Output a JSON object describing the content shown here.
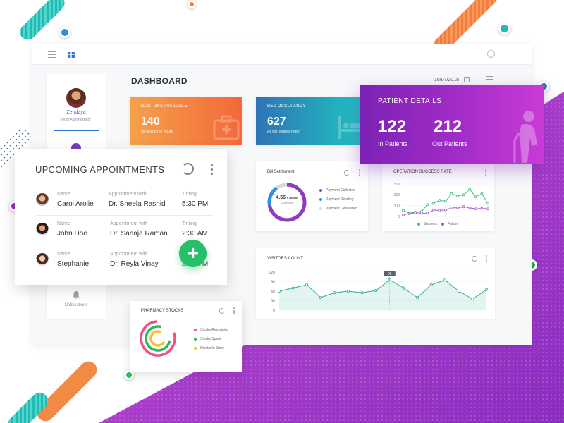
{
  "page_title": "DASHBOARD",
  "date": "16/07/2018",
  "user": {
    "name": "Zendaya",
    "role": "Floor Administrator"
  },
  "sidebar": {
    "notifications_label": "Notifications"
  },
  "stats": {
    "doctors": {
      "label": "DOCTORS AVAILABLE",
      "value": "140",
      "sub": "for Next three Hours",
      "color_from": "#f6a14a",
      "color_to": "#f2693a"
    },
    "beds": {
      "label": "BED OCCUPANCY",
      "value": "627",
      "sub": "As per Today's report",
      "color_from": "#2f74b6",
      "color_to": "#1fc6c1"
    }
  },
  "patient_details": {
    "title": "PATIENT DETAILS",
    "in_value": "122",
    "in_label": "In Patients",
    "out_value": "212",
    "out_label": "Out Patients"
  },
  "bill": {
    "title": "Bill Settlement",
    "center_value": "4.56",
    "center_unit": "$ Billion",
    "center_label": "Collected",
    "legend": [
      "Payment Collected",
      "Payment Pending",
      "Payment Generated"
    ],
    "colors": [
      "#8e3bbf",
      "#2f8fe0",
      "#d7d9de"
    ],
    "collected_fraction": 0.72,
    "pending_fraction": 0.18
  },
  "operation": {
    "title": "Operation Success Rate",
    "legend": [
      "Success",
      "Failure"
    ],
    "colors": [
      "#3fbf7f",
      "#a55cc9"
    ]
  },
  "visitors": {
    "title": "Visitors Count",
    "tooltip": "96"
  },
  "pharmacy": {
    "title": "Pharmacy Stocks",
    "legend": [
      "Stocks Remaining",
      "Stocks Spent",
      "Stocks In Store"
    ],
    "colors": [
      "#f0527a",
      "#2fb461",
      "#f4c21f"
    ]
  },
  "appointments": {
    "title": "UPCOMING APPOINTMENTS",
    "col_name": "Name",
    "col_with": "Appointment with",
    "col_time": "Timing",
    "rows": [
      {
        "name": "Carol Arolie",
        "doctor": "Dr. Sheela Rashid",
        "time": "5:30 PM"
      },
      {
        "name": "John Doe",
        "doctor": "Dr. Sanaja Raman",
        "time": "2:30 AM"
      },
      {
        "name": "Stephanie",
        "doctor": "Dr. Reyla Vinay",
        "time": "3:30 PM"
      }
    ]
  },
  "chart_data": [
    {
      "type": "line",
      "title": "Operation Success Rate",
      "ylim": [
        0,
        300
      ],
      "yticks": [
        "300",
        "200",
        "100",
        "0"
      ],
      "x": [
        1,
        2,
        3,
        4,
        5,
        6,
        7,
        8,
        9,
        10,
        11,
        12,
        13,
        14,
        15
      ],
      "series": [
        {
          "name": "Success",
          "values": [
            55,
            30,
            40,
            45,
            110,
            120,
            150,
            140,
            210,
            190,
            200,
            250,
            180,
            210,
            120
          ]
        },
        {
          "name": "Failure",
          "values": [
            15,
            25,
            35,
            30,
            30,
            60,
            55,
            60,
            80,
            80,
            90,
            80,
            70,
            75,
            70
          ]
        }
      ],
      "legend": "bottom"
    },
    {
      "type": "area",
      "title": "Visitors Count",
      "ylim": [
        0,
        120
      ],
      "yticks": [
        "120",
        "90",
        "60",
        "30",
        "0"
      ],
      "x": [
        1,
        2,
        3,
        4,
        5,
        6,
        7,
        8,
        9,
        10,
        11,
        12,
        13,
        14,
        15,
        16
      ],
      "series": [
        {
          "name": "",
          "values": [
            60,
            70,
            80,
            40,
            55,
            60,
            55,
            62,
            96,
            70,
            40,
            80,
            95,
            60,
            35,
            65
          ]
        }
      ],
      "annotations": [
        {
          "x": 9,
          "label": "96"
        }
      ]
    }
  ]
}
